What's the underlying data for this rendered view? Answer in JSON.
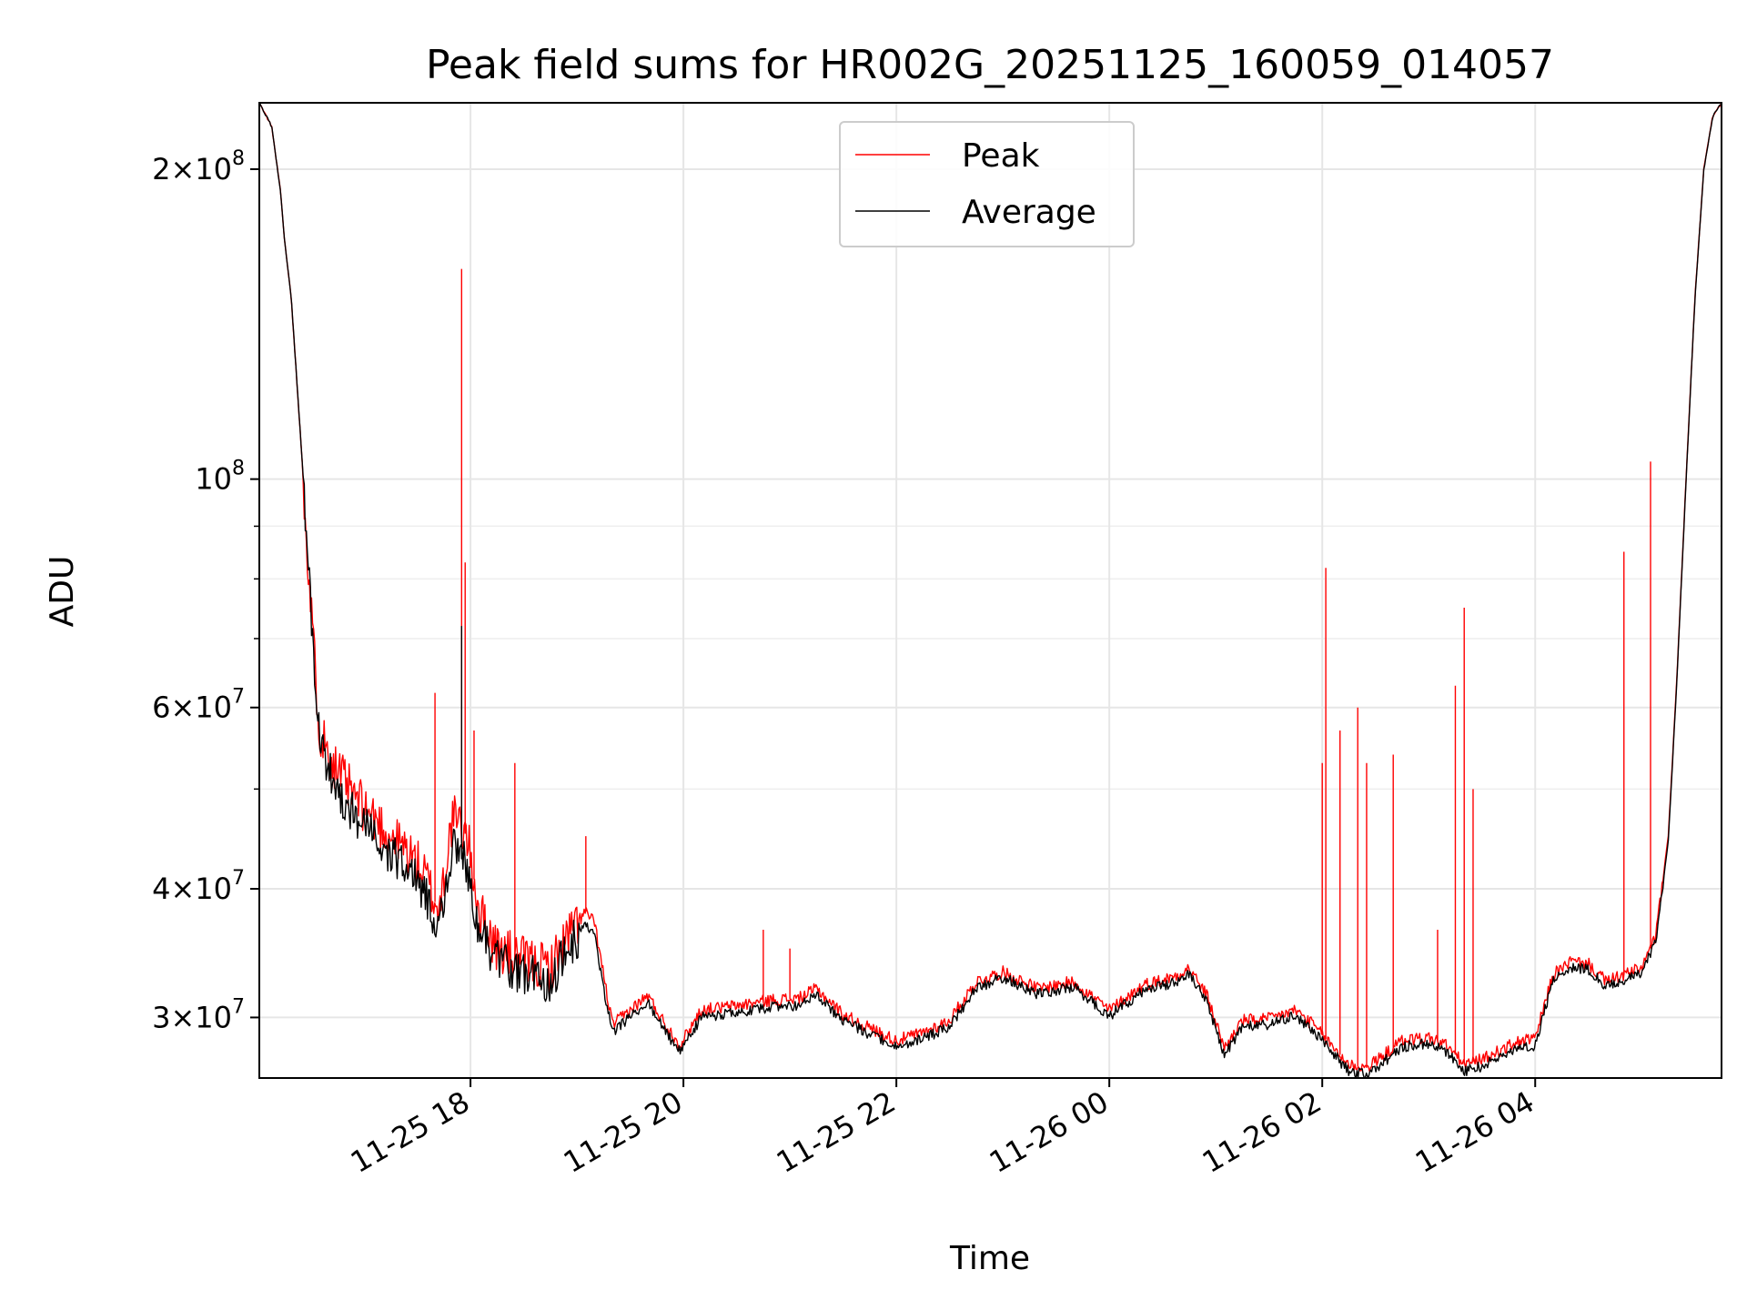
{
  "chart_data": {
    "type": "line",
    "title": "Peak field sums for HR002G_20251125_160059_014057",
    "xlabel": "Time",
    "ylabel": "ADU",
    "yscale": "log",
    "grid": true,
    "legend_position": "top-center",
    "xlim": [
      "2025-11-25 16:01",
      "2025-11-26 05:45"
    ],
    "ylim": [
      26200000,
      232000000
    ],
    "x_ticks": [
      {
        "value": "2025-11-25 18:00",
        "label": "11-25 18"
      },
      {
        "value": "2025-11-25 20:00",
        "label": "11-25 20"
      },
      {
        "value": "2025-11-25 22:00",
        "label": "11-25 22"
      },
      {
        "value": "2025-11-26 00:00",
        "label": "11-26 00"
      },
      {
        "value": "2025-11-26 02:00",
        "label": "11-26 02"
      },
      {
        "value": "2025-11-26 04:00",
        "label": "11-26 04"
      }
    ],
    "y_major_ticks": [
      {
        "value": 30000000,
        "mantissa": "3",
        "exp": "7"
      },
      {
        "value": 40000000,
        "mantissa": "4",
        "exp": "7"
      },
      {
        "value": 60000000,
        "mantissa": "6",
        "exp": "7"
      },
      {
        "value": 100000000,
        "mantissa": "",
        "exp": "8"
      },
      {
        "value": 200000000,
        "mantissa": "2",
        "exp": "8"
      }
    ],
    "y_minor_ticks": [
      50000000,
      70000000,
      80000000,
      90000000
    ],
    "series": [
      {
        "name": "Peak",
        "color": "#ff0000",
        "points": [
          [
            "2025-11-25 16:01",
            232000000
          ],
          [
            "2025-11-25 16:08",
            220000000
          ],
          [
            "2025-11-25 16:13",
            190000000
          ],
          [
            "2025-11-25 16:15",
            172000000
          ],
          [
            "2025-11-25 16:19",
            150000000
          ],
          [
            "2025-11-25 16:25",
            105000000
          ],
          [
            "2025-11-25 16:30",
            75000000
          ],
          [
            "2025-11-25 16:35",
            57000000
          ],
          [
            "2025-11-25 16:45",
            52000000
          ],
          [
            "2025-11-25 16:55",
            49000000
          ],
          [
            "2025-11-25 17:05",
            47000000
          ],
          [
            "2025-11-25 17:15",
            45000000
          ],
          [
            "2025-11-25 17:25",
            43500000
          ],
          [
            "2025-11-25 17:35",
            41000000
          ],
          [
            "2025-11-25 17:42",
            38000000
          ],
          [
            "2025-11-25 17:50",
            47000000
          ],
          [
            "2025-11-25 17:58",
            45000000
          ],
          [
            "2025-11-25 18:05",
            38000000
          ],
          [
            "2025-11-25 18:15",
            35000000
          ],
          [
            "2025-11-25 18:30",
            34000000
          ],
          [
            "2025-11-25 18:45",
            33500000
          ],
          [
            "2025-11-25 18:55",
            36000000
          ],
          [
            "2025-11-25 19:05",
            38000000
          ],
          [
            "2025-11-25 19:10",
            37000000
          ],
          [
            "2025-11-25 19:15",
            33000000
          ],
          [
            "2025-11-25 19:20",
            29500000
          ],
          [
            "2025-11-25 19:30",
            30500000
          ],
          [
            "2025-11-25 19:40",
            31500000
          ],
          [
            "2025-11-25 19:50",
            29500000
          ],
          [
            "2025-11-25 19:58",
            28200000
          ],
          [
            "2025-11-25 20:10",
            30500000
          ],
          [
            "2025-11-25 20:30",
            30800000
          ],
          [
            "2025-11-25 20:50",
            31200000
          ],
          [
            "2025-11-25 21:05",
            31300000
          ],
          [
            "2025-11-25 21:15",
            32000000
          ],
          [
            "2025-11-25 21:30",
            30200000
          ],
          [
            "2025-11-25 21:45",
            29300000
          ],
          [
            "2025-11-25 22:00",
            28500000
          ],
          [
            "2025-11-25 22:15",
            29000000
          ],
          [
            "2025-11-25 22:30",
            29800000
          ],
          [
            "2025-11-25 22:45",
            32500000
          ],
          [
            "2025-11-25 23:00",
            33200000
          ],
          [
            "2025-11-25 23:20",
            32000000
          ],
          [
            "2025-11-25 23:40",
            32500000
          ],
          [
            "2025-11-26 00:00",
            30500000
          ],
          [
            "2025-11-26 00:20",
            32300000
          ],
          [
            "2025-11-26 00:35",
            32800000
          ],
          [
            "2025-11-26 00:45",
            33500000
          ],
          [
            "2025-11-26 00:55",
            31500000
          ],
          [
            "2025-11-26 01:05",
            28000000
          ],
          [
            "2025-11-26 01:15",
            29800000
          ],
          [
            "2025-11-26 01:30",
            29900000
          ],
          [
            "2025-11-26 01:45",
            30500000
          ],
          [
            "2025-11-26 01:55",
            29500000
          ],
          [
            "2025-11-26 02:05",
            28200000
          ],
          [
            "2025-11-26 02:15",
            27000000
          ],
          [
            "2025-11-26 02:25",
            26800000
          ],
          [
            "2025-11-26 02:35",
            27600000
          ],
          [
            "2025-11-26 02:45",
            28500000
          ],
          [
            "2025-11-26 03:00",
            28700000
          ],
          [
            "2025-11-26 03:10",
            28200000
          ],
          [
            "2025-11-26 03:20",
            27000000
          ],
          [
            "2025-11-26 03:30",
            27300000
          ],
          [
            "2025-11-26 03:50",
            28400000
          ],
          [
            "2025-11-26 04:00",
            28600000
          ],
          [
            "2025-11-26 04:10",
            33000000
          ],
          [
            "2025-11-26 04:20",
            34000000
          ],
          [
            "2025-11-26 04:30",
            33800000
          ],
          [
            "2025-11-26 04:40",
            32500000
          ],
          [
            "2025-11-26 04:50",
            33000000
          ],
          [
            "2025-11-26 05:00",
            33500000
          ],
          [
            "2025-11-26 05:08",
            36000000
          ],
          [
            "2025-11-26 05:15",
            45000000
          ],
          [
            "2025-11-26 05:20",
            65000000
          ],
          [
            "2025-11-26 05:25",
            100000000
          ],
          [
            "2025-11-26 05:30",
            150000000
          ],
          [
            "2025-11-26 05:35",
            200000000
          ],
          [
            "2025-11-26 05:40",
            225000000
          ],
          [
            "2025-11-26 05:45",
            232000000
          ]
        ],
        "spikes": [
          [
            "2025-11-25 17:40",
            62000000
          ],
          [
            "2025-11-25 17:55",
            160000000
          ],
          [
            "2025-11-25 17:57",
            83000000
          ],
          [
            "2025-11-25 18:02",
            57000000
          ],
          [
            "2025-11-25 18:25",
            53000000
          ],
          [
            "2025-11-25 19:05",
            45000000
          ],
          [
            "2025-11-25 20:45",
            36500000
          ],
          [
            "2025-11-25 21:00",
            35000000
          ],
          [
            "2025-11-26 02:02",
            82000000
          ],
          [
            "2025-11-26 02:00",
            53000000
          ],
          [
            "2025-11-26 02:10",
            57000000
          ],
          [
            "2025-11-26 02:20",
            60000000
          ],
          [
            "2025-11-26 02:25",
            53000000
          ],
          [
            "2025-11-26 02:40",
            54000000
          ],
          [
            "2025-11-26 03:05",
            36500000
          ],
          [
            "2025-11-26 03:15",
            63000000
          ],
          [
            "2025-11-26 03:20",
            75000000
          ],
          [
            "2025-11-26 03:25",
            50000000
          ],
          [
            "2025-11-26 04:50",
            85000000
          ],
          [
            "2025-11-26 05:05",
            104000000
          ]
        ]
      },
      {
        "name": "Average",
        "color": "#000000",
        "points": [
          [
            "2025-11-25 16:01",
            232000000
          ],
          [
            "2025-11-25 16:08",
            220000000
          ],
          [
            "2025-11-25 16:13",
            190000000
          ],
          [
            "2025-11-25 16:15",
            172000000
          ],
          [
            "2025-11-25 16:19",
            150000000
          ],
          [
            "2025-11-25 16:25",
            105000000
          ],
          [
            "2025-11-25 16:30",
            75000000
          ],
          [
            "2025-11-25 16:35",
            55000000
          ],
          [
            "2025-11-25 16:45",
            50000000
          ],
          [
            "2025-11-25 16:55",
            47000000
          ],
          [
            "2025-11-25 17:05",
            45000000
          ],
          [
            "2025-11-25 17:15",
            43000000
          ],
          [
            "2025-11-25 17:25",
            42000000
          ],
          [
            "2025-11-25 17:35",
            39500000
          ],
          [
            "2025-11-25 17:42",
            36500000
          ],
          [
            "2025-11-25 17:50",
            44000000
          ],
          [
            "2025-11-25 17:58",
            42000000
          ],
          [
            "2025-11-25 18:05",
            36500000
          ],
          [
            "2025-11-25 18:15",
            34000000
          ],
          [
            "2025-11-25 18:30",
            33000000
          ],
          [
            "2025-11-25 18:45",
            32500000
          ],
          [
            "2025-11-25 18:55",
            35000000
          ],
          [
            "2025-11-25 19:05",
            36800000
          ],
          [
            "2025-11-25 19:10",
            36000000
          ],
          [
            "2025-11-25 19:15",
            32000000
          ],
          [
            "2025-11-25 19:20",
            29000000
          ],
          [
            "2025-11-25 19:30",
            30000000
          ],
          [
            "2025-11-25 19:40",
            31000000
          ],
          [
            "2025-11-25 19:50",
            29000000
          ],
          [
            "2025-11-25 19:58",
            27800000
          ],
          [
            "2025-11-25 20:10",
            30000000
          ],
          [
            "2025-11-25 20:30",
            30300000
          ],
          [
            "2025-11-25 20:50",
            30700000
          ],
          [
            "2025-11-25 21:05",
            30800000
          ],
          [
            "2025-11-25 21:15",
            31500000
          ],
          [
            "2025-11-25 21:30",
            29800000
          ],
          [
            "2025-11-25 21:45",
            28900000
          ],
          [
            "2025-11-25 22:00",
            28100000
          ],
          [
            "2025-11-25 22:15",
            28600000
          ],
          [
            "2025-11-25 22:30",
            29400000
          ],
          [
            "2025-11-25 22:45",
            32000000
          ],
          [
            "2025-11-25 23:00",
            32800000
          ],
          [
            "2025-11-25 23:20",
            31600000
          ],
          [
            "2025-11-25 23:40",
            32100000
          ],
          [
            "2025-11-26 00:00",
            30100000
          ],
          [
            "2025-11-26 00:20",
            31900000
          ],
          [
            "2025-11-26 00:35",
            32400000
          ],
          [
            "2025-11-26 00:45",
            33000000
          ],
          [
            "2025-11-26 00:55",
            31000000
          ],
          [
            "2025-11-26 01:05",
            27600000
          ],
          [
            "2025-11-26 01:15",
            29400000
          ],
          [
            "2025-11-26 01:30",
            29500000
          ],
          [
            "2025-11-26 01:45",
            30100000
          ],
          [
            "2025-11-26 01:55",
            29100000
          ],
          [
            "2025-11-26 02:05",
            27800000
          ],
          [
            "2025-11-26 02:15",
            26600000
          ],
          [
            "2025-11-26 02:25",
            26400000
          ],
          [
            "2025-11-26 02:35",
            27200000
          ],
          [
            "2025-11-26 02:45",
            28100000
          ],
          [
            "2025-11-26 03:00",
            28300000
          ],
          [
            "2025-11-26 03:10",
            27800000
          ],
          [
            "2025-11-26 03:20",
            26600000
          ],
          [
            "2025-11-26 03:30",
            26900000
          ],
          [
            "2025-11-26 03:50",
            28000000
          ],
          [
            "2025-11-26 04:00",
            28200000
          ],
          [
            "2025-11-26 04:10",
            32600000
          ],
          [
            "2025-11-26 04:20",
            33600000
          ],
          [
            "2025-11-26 04:30",
            33400000
          ],
          [
            "2025-11-26 04:40",
            32100000
          ],
          [
            "2025-11-26 04:50",
            32600000
          ],
          [
            "2025-11-26 05:00",
            33100000
          ],
          [
            "2025-11-26 05:08",
            35600000
          ],
          [
            "2025-11-26 05:15",
            44500000
          ],
          [
            "2025-11-26 05:20",
            64500000
          ],
          [
            "2025-11-26 05:25",
            99500000
          ],
          [
            "2025-11-26 05:30",
            149500000
          ],
          [
            "2025-11-26 05:35",
            199500000
          ],
          [
            "2025-11-26 05:40",
            225000000
          ],
          [
            "2025-11-26 05:45",
            232000000
          ]
        ],
        "spikes": [
          [
            "2025-11-25 17:55",
            72000000
          ]
        ]
      }
    ]
  }
}
